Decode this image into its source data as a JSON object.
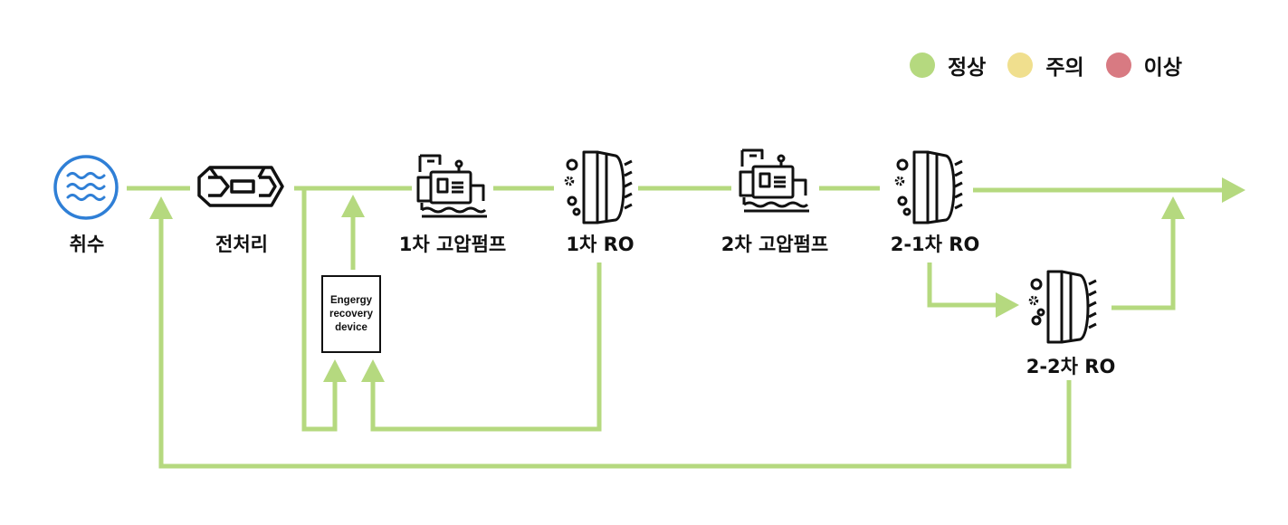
{
  "legend": [
    {
      "label": "정상",
      "color": "#b5d97f"
    },
    {
      "label": "주의",
      "color": "#f0df8e"
    },
    {
      "label": "이상",
      "color": "#d87a82"
    }
  ],
  "nodes": {
    "intake": {
      "label": "취수",
      "icon": "water-wave-icon"
    },
    "pretreatment": {
      "label": "전처리",
      "icon": "pretreatment-filter-icon"
    },
    "pump1": {
      "label": "1차 고압펌프",
      "icon": "high-pressure-pump-icon"
    },
    "ro1": {
      "label": "1차 RO",
      "icon": "ro-membrane-icon"
    },
    "pump2": {
      "label": "2차 고압펌프",
      "icon": "high-pressure-pump-icon"
    },
    "ro21": {
      "label": "2-1차 RO",
      "icon": "ro-membrane-icon"
    },
    "ro22": {
      "label": "2-2차 RO",
      "icon": "ro-membrane-icon"
    },
    "erd": {
      "label": "Engergy\nrecovery\ndevice"
    }
  },
  "colors": {
    "flow": "#b5d97f",
    "intake_icon": "#2f7fd6",
    "icon_stroke": "#111111"
  }
}
